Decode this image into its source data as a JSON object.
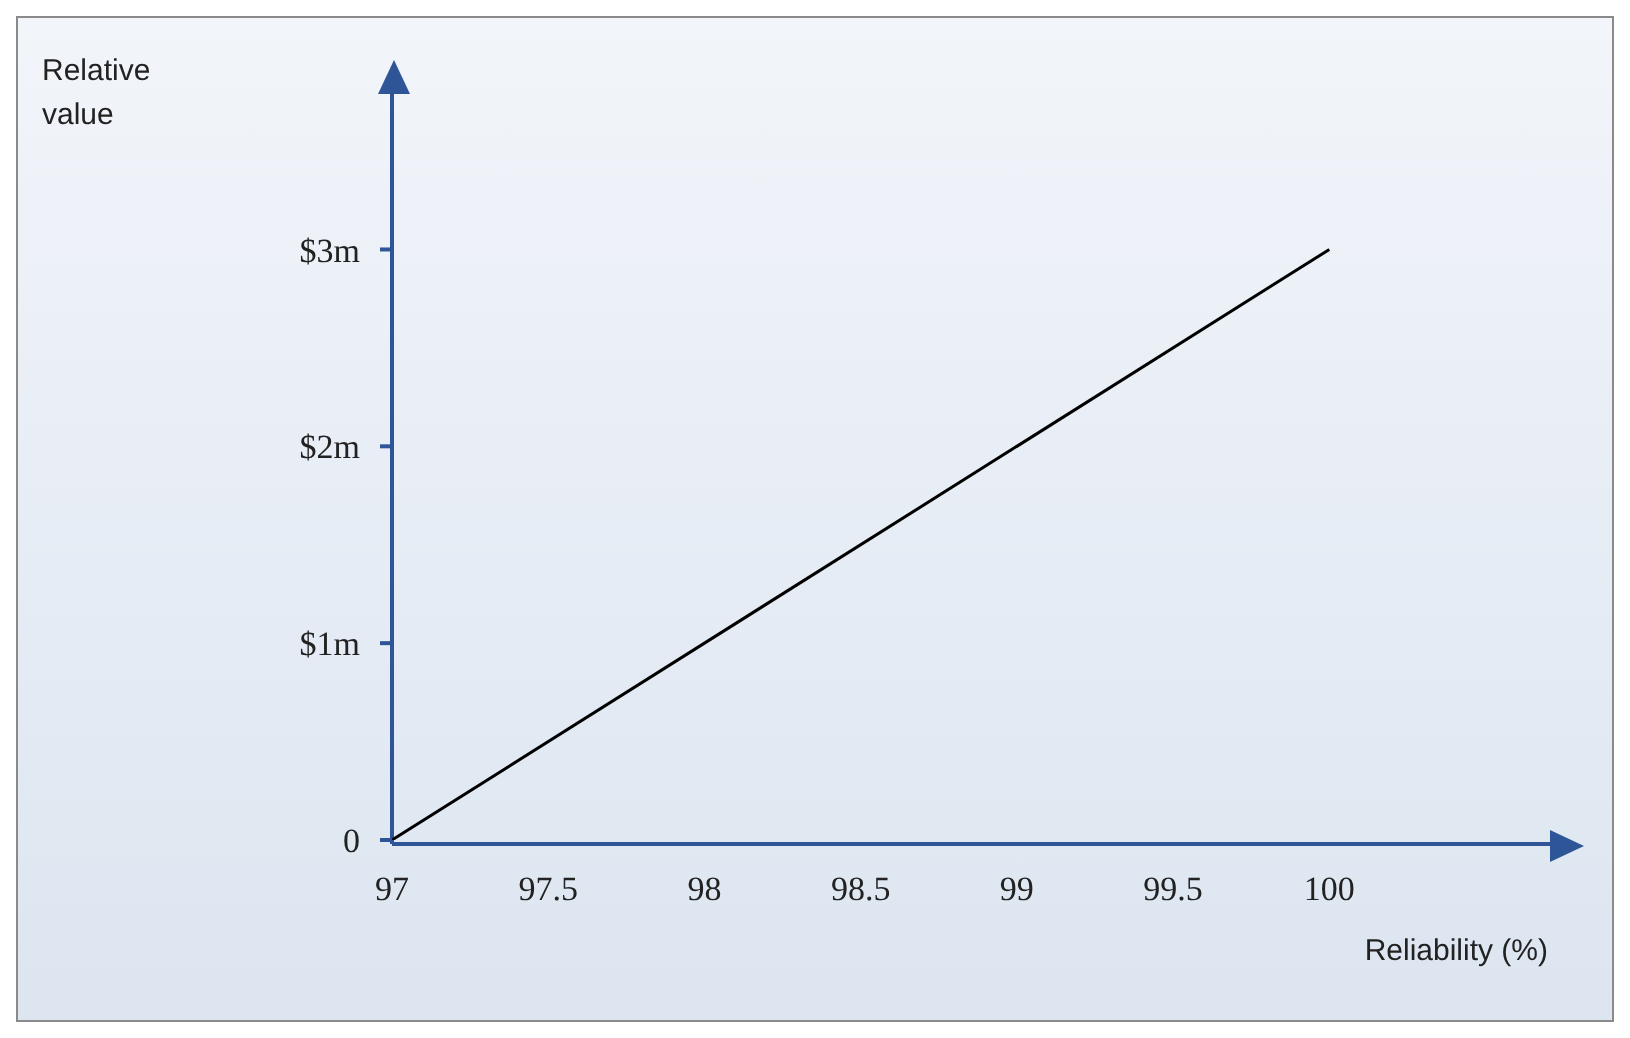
{
  "chart_data": {
    "type": "line",
    "xlabel": "Reliability (%)",
    "ylabel": "Relative value",
    "x": [
      97,
      100
    ],
    "series": [
      {
        "color": "#000000",
        "values": [
          0,
          3
        ]
      }
    ],
    "xlim": [
      97,
      100.7
    ],
    "xticks": [
      97,
      97.5,
      98,
      98.5,
      99,
      99.5,
      100
    ],
    "ylim": [
      0,
      3.8
    ],
    "yticks": [
      {
        "value": 0,
        "label": "0"
      },
      {
        "value": 1,
        "label": "$1m"
      },
      {
        "value": 2,
        "label": "$2m"
      },
      {
        "value": 3,
        "label": "$3m"
      }
    ],
    "grid": false,
    "marker": "none",
    "line_style": "solid"
  }
}
